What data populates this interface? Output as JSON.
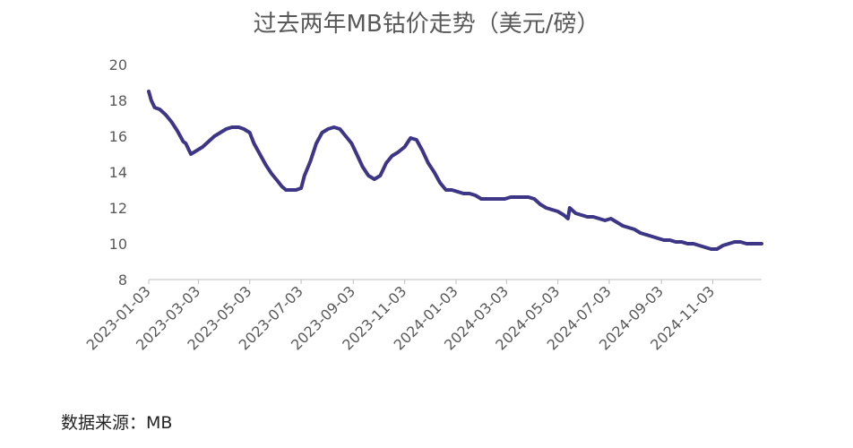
{
  "chart_data": {
    "type": "line",
    "title": "过去两年MB钴价走势（美元/磅）",
    "xlabel": "",
    "ylabel": "",
    "xlim": [
      "2023-01-03",
      "2024-12-31"
    ],
    "ylim": [
      8,
      20
    ],
    "y_ticks": [
      8,
      10,
      12,
      14,
      16,
      18,
      20
    ],
    "x_ticks": [
      "2023-01-03",
      "2023-03-03",
      "2023-05-03",
      "2023-07-03",
      "2023-09-03",
      "2023-11-03",
      "2024-01-03",
      "2024-03-03",
      "2024-05-03",
      "2024-07-03",
      "2024-09-03",
      "2024-11-03"
    ],
    "grid": false,
    "legend": "none",
    "line_color": "#3d3585",
    "series": [
      {
        "x": [
          "2023-01-03",
          "2023-01-06",
          "2023-01-10",
          "2023-01-16",
          "2023-01-23",
          "2023-01-30",
          "2023-02-06",
          "2023-02-13",
          "2023-02-16",
          "2023-02-22",
          "2023-03-01",
          "2023-03-08",
          "2023-03-15",
          "2023-03-22",
          "2023-03-29",
          "2023-04-05",
          "2023-04-12",
          "2023-04-20",
          "2023-04-26",
          "2023-05-03",
          "2023-05-08",
          "2023-05-15",
          "2023-05-22",
          "2023-05-29",
          "2023-06-05",
          "2023-06-10",
          "2023-06-15",
          "2023-06-22",
          "2023-06-27",
          "2023-07-03",
          "2023-07-07",
          "2023-07-14",
          "2023-07-21",
          "2023-07-28",
          "2023-08-04",
          "2023-08-11",
          "2023-08-18",
          "2023-08-25",
          "2023-09-01",
          "2023-09-07",
          "2023-09-14",
          "2023-09-21",
          "2023-09-28",
          "2023-10-05",
          "2023-10-12",
          "2023-10-19",
          "2023-10-26",
          "2023-11-03",
          "2023-11-10",
          "2023-11-17",
          "2023-11-24",
          "2023-12-01",
          "2023-12-08",
          "2023-12-15",
          "2023-12-22",
          "2023-12-29",
          "2024-01-05",
          "2024-01-12",
          "2024-01-19",
          "2024-01-26",
          "2024-02-02",
          "2024-02-09",
          "2024-02-16",
          "2024-02-23",
          "2024-03-01",
          "2024-03-08",
          "2024-03-15",
          "2024-03-22",
          "2024-03-29",
          "2024-04-05",
          "2024-04-12",
          "2024-04-19",
          "2024-04-26",
          "2024-05-03",
          "2024-05-10",
          "2024-05-15",
          "2024-05-17",
          "2024-05-24",
          "2024-05-31",
          "2024-06-07",
          "2024-06-14",
          "2024-06-21",
          "2024-06-28",
          "2024-07-05",
          "2024-07-12",
          "2024-07-19",
          "2024-07-26",
          "2024-08-02",
          "2024-08-09",
          "2024-08-16",
          "2024-08-23",
          "2024-08-30",
          "2024-09-06",
          "2024-09-13",
          "2024-09-20",
          "2024-09-27",
          "2024-10-04",
          "2024-10-11",
          "2024-10-18",
          "2024-10-25",
          "2024-11-01",
          "2024-11-08",
          "2024-11-15",
          "2024-11-22",
          "2024-11-29",
          "2024-12-06",
          "2024-12-13",
          "2024-12-20",
          "2024-12-31"
        ],
        "values": [
          18.5,
          18.0,
          17.6,
          17.5,
          17.2,
          16.8,
          16.3,
          15.7,
          15.6,
          15.0,
          15.2,
          15.4,
          15.7,
          16.0,
          16.2,
          16.4,
          16.5,
          16.5,
          16.4,
          16.2,
          15.6,
          15.0,
          14.4,
          13.9,
          13.5,
          13.2,
          13.0,
          13.0,
          13.0,
          13.1,
          13.8,
          14.6,
          15.6,
          16.2,
          16.4,
          16.5,
          16.4,
          16.0,
          15.6,
          15.0,
          14.3,
          13.8,
          13.6,
          13.8,
          14.5,
          14.9,
          15.1,
          15.4,
          15.9,
          15.8,
          15.2,
          14.5,
          14.0,
          13.4,
          13.0,
          13.0,
          12.9,
          12.8,
          12.8,
          12.7,
          12.5,
          12.5,
          12.5,
          12.5,
          12.5,
          12.6,
          12.6,
          12.6,
          12.6,
          12.5,
          12.2,
          12.0,
          11.9,
          11.8,
          11.6,
          11.4,
          12.0,
          11.7,
          11.6,
          11.5,
          11.5,
          11.4,
          11.3,
          11.4,
          11.2,
          11.0,
          10.9,
          10.8,
          10.6,
          10.5,
          10.4,
          10.3,
          10.2,
          10.2,
          10.1,
          10.1,
          10.0,
          10.0,
          9.9,
          9.8,
          9.7,
          9.7,
          9.9,
          10.0,
          10.1,
          10.1,
          10.0,
          10.0,
          10.0
        ]
      }
    ]
  },
  "source_note": "数据来源：MB"
}
